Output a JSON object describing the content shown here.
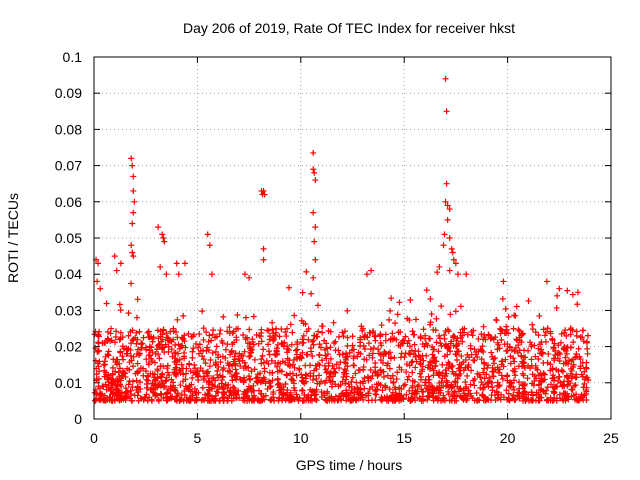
{
  "chart_data": {
    "type": "scatter",
    "title": "Day 206 of 2019, Rate Of TEC Index for receiver hkst",
    "xlabel": "GPS time / hours",
    "ylabel": "ROTI / TECUs",
    "xlim": [
      0,
      25
    ],
    "ylim": [
      0,
      0.1
    ],
    "xticks": [
      0,
      5,
      10,
      15,
      20,
      25
    ],
    "xtick_labels": [
      "0",
      "5",
      "10",
      "15",
      "20",
      "25"
    ],
    "yticks": [
      0,
      0.01,
      0.02,
      0.03,
      0.04,
      0.05,
      0.06,
      0.07,
      0.08,
      0.09,
      0.1
    ],
    "ytick_labels": [
      "0",
      "0.01",
      "0.02",
      "0.03",
      "0.04",
      "0.05",
      "0.06",
      "0.07",
      "0.08",
      "0.09",
      "0.1"
    ],
    "grid": true,
    "marker": "+",
    "series": [
      {
        "name": "ROTI",
        "color": "#ff0000",
        "dense_band": {
          "x_range": [
            0,
            23.9
          ],
          "typical_range": [
            0.005,
            0.025
          ],
          "note": "thousands of samples, approx. 30-second cadence"
        },
        "points": [
          [
            0.1,
            0.044
          ],
          [
            0.15,
            0.038
          ],
          [
            0.2,
            0.043
          ],
          [
            0.3,
            0.036
          ],
          [
            1.0,
            0.045
          ],
          [
            1.1,
            0.041
          ],
          [
            1.3,
            0.043
          ],
          [
            1.8,
            0.072
          ],
          [
            1.85,
            0.07
          ],
          [
            1.9,
            0.067
          ],
          [
            1.9,
            0.063
          ],
          [
            1.95,
            0.06
          ],
          [
            1.9,
            0.057
          ],
          [
            1.85,
            0.054
          ],
          [
            1.8,
            0.048
          ],
          [
            1.85,
            0.046
          ],
          [
            1.9,
            0.045
          ],
          [
            3.1,
            0.053
          ],
          [
            3.3,
            0.051
          ],
          [
            3.35,
            0.05
          ],
          [
            3.4,
            0.049
          ],
          [
            3.2,
            0.042
          ],
          [
            3.5,
            0.04
          ],
          [
            4.0,
            0.043
          ],
          [
            4.1,
            0.04
          ],
          [
            4.4,
            0.043
          ],
          [
            5.5,
            0.051
          ],
          [
            5.6,
            0.048
          ],
          [
            5.7,
            0.04
          ],
          [
            7.3,
            0.04
          ],
          [
            7.5,
            0.039
          ],
          [
            8.1,
            0.063
          ],
          [
            8.15,
            0.062
          ],
          [
            8.2,
            0.063
          ],
          [
            8.25,
            0.062
          ],
          [
            8.2,
            0.047
          ],
          [
            8.2,
            0.044
          ],
          [
            10.6,
            0.0735
          ],
          [
            10.6,
            0.069
          ],
          [
            10.65,
            0.068
          ],
          [
            10.7,
            0.066
          ],
          [
            10.6,
            0.057
          ],
          [
            10.7,
            0.053
          ],
          [
            10.65,
            0.049
          ],
          [
            10.7,
            0.044
          ],
          [
            10.6,
            0.039
          ],
          [
            13.2,
            0.04
          ],
          [
            13.4,
            0.041
          ],
          [
            16.7,
            0.042
          ],
          [
            16.9,
            0.048
          ],
          [
            16.95,
            0.051
          ],
          [
            17.0,
            0.094
          ],
          [
            17.05,
            0.085
          ],
          [
            17.05,
            0.065
          ],
          [
            17.0,
            0.06
          ],
          [
            17.1,
            0.059
          ],
          [
            17.2,
            0.058
          ],
          [
            17.1,
            0.055
          ],
          [
            17.2,
            0.05
          ],
          [
            17.3,
            0.047
          ],
          [
            17.35,
            0.046
          ],
          [
            17.4,
            0.044
          ],
          [
            17.5,
            0.043
          ],
          [
            17.2,
            0.041
          ],
          [
            17.6,
            0.04
          ],
          [
            18.0,
            0.04
          ],
          [
            19.8,
            0.038
          ],
          [
            21.9,
            0.038
          ],
          [
            23.4,
            0.035
          ],
          [
            22.5,
            0.036
          ]
        ]
      }
    ]
  }
}
